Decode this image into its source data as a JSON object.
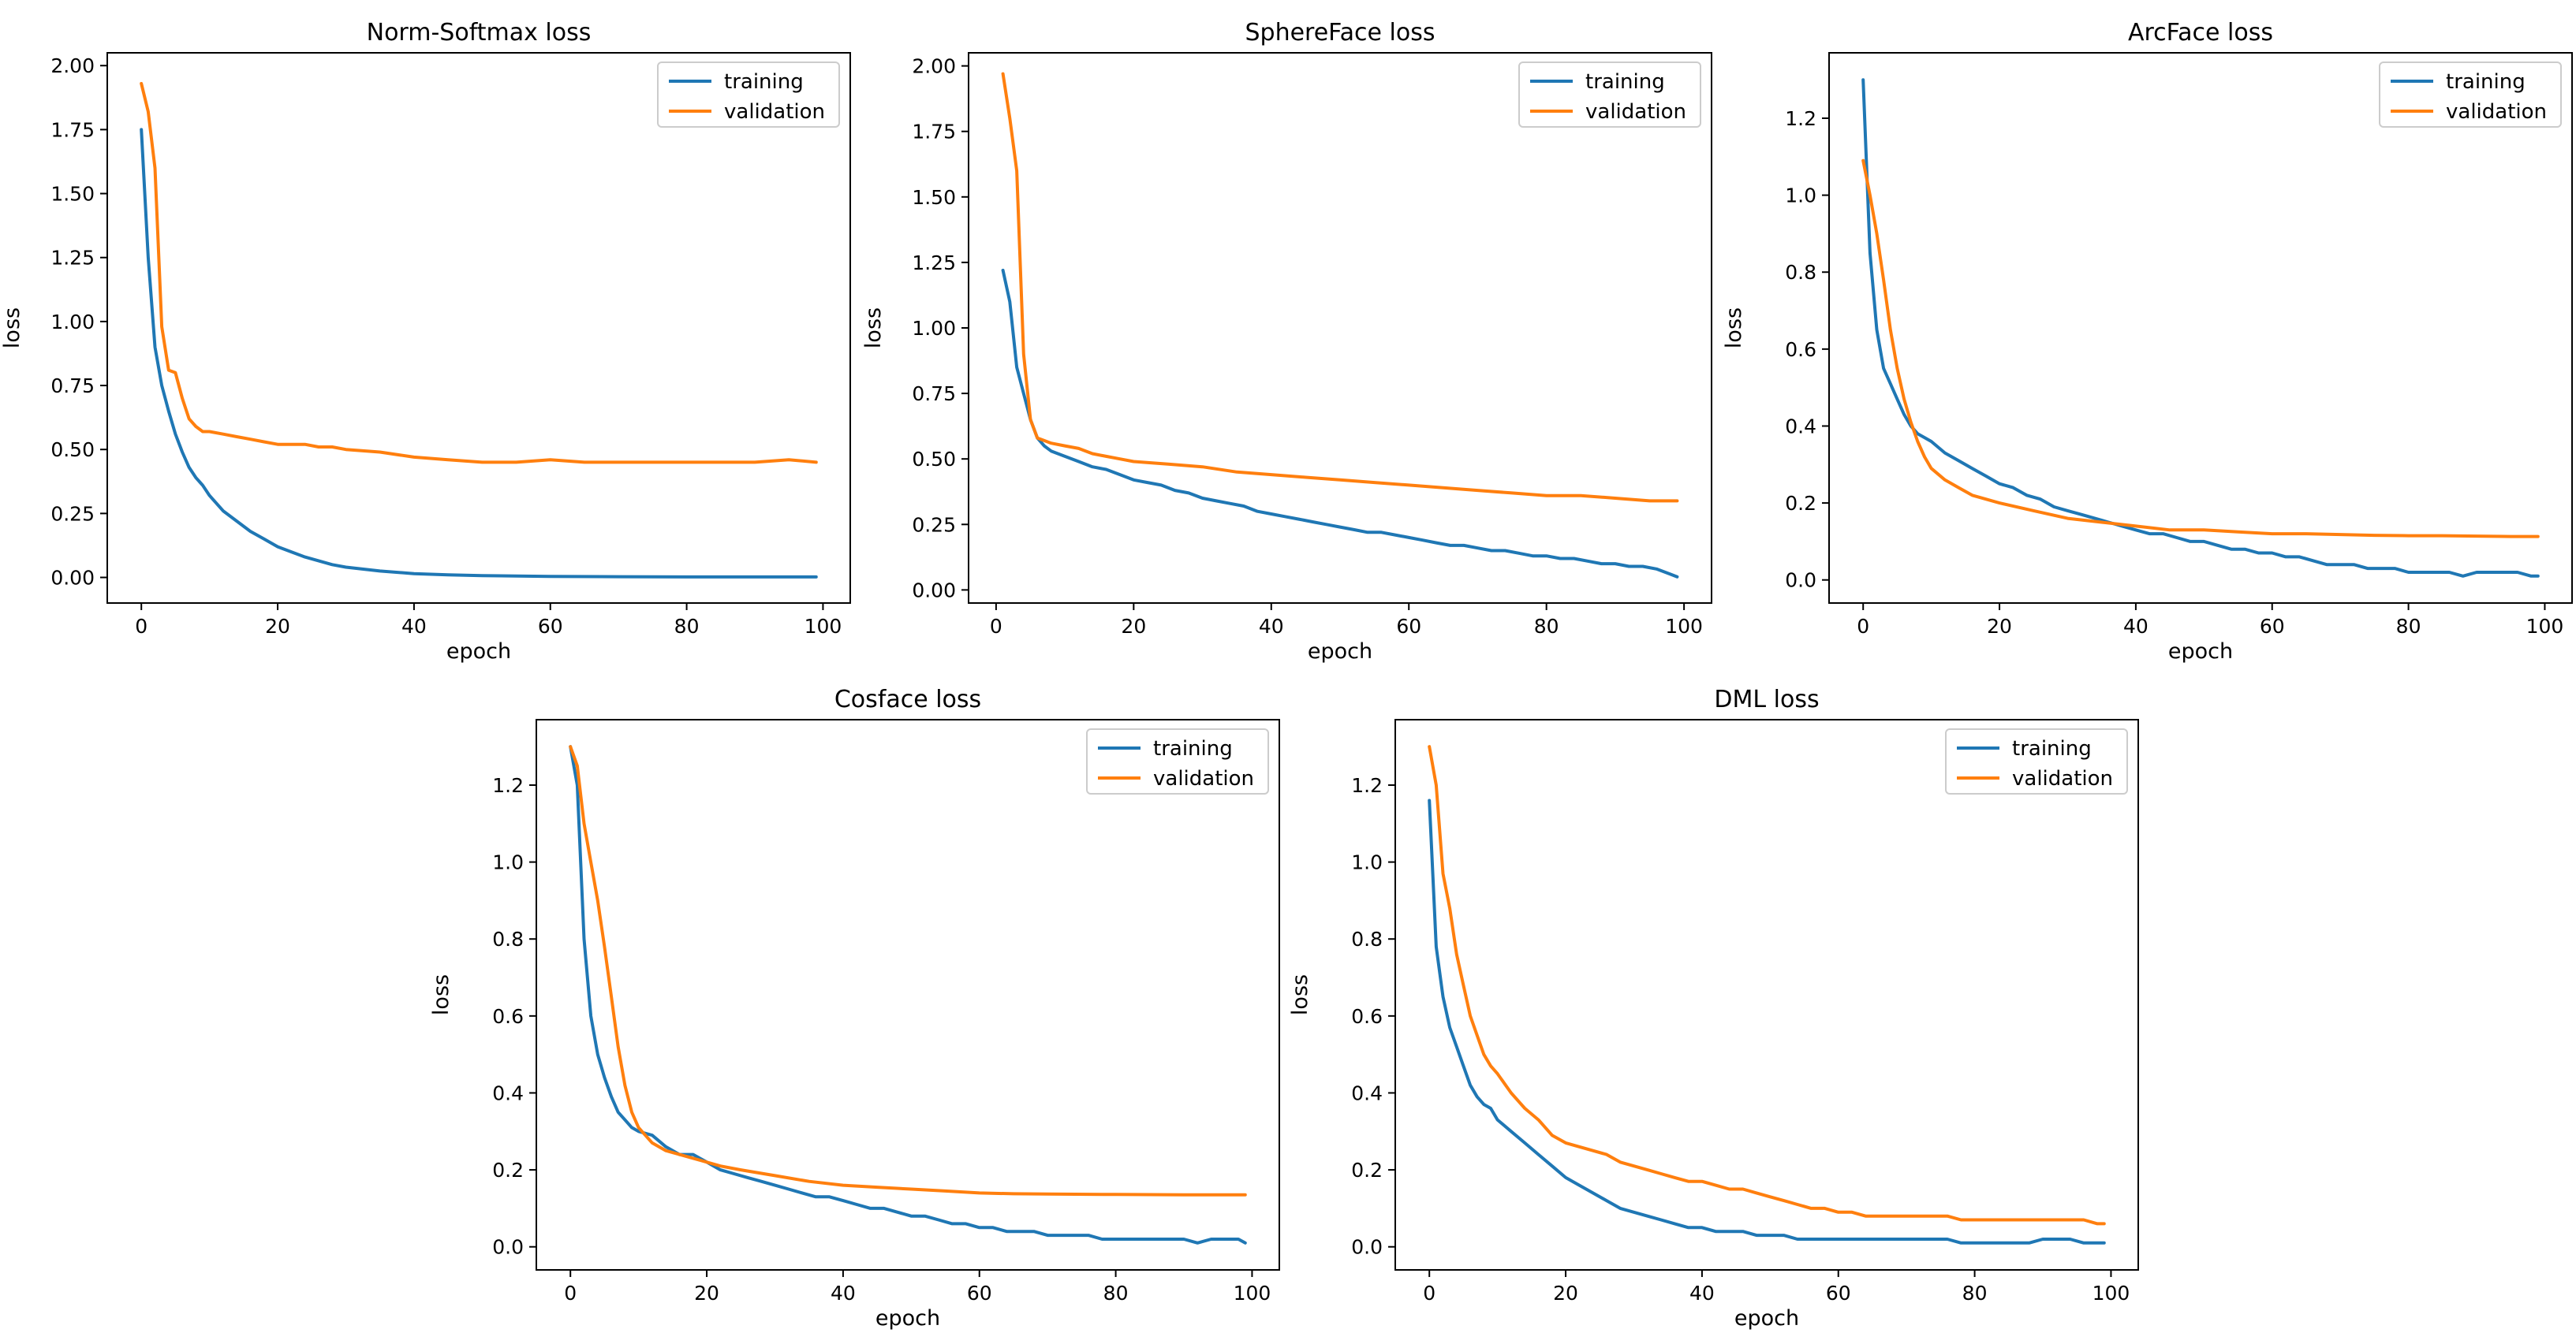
{
  "colors": {
    "training": "#1f77b4",
    "validation": "#ff7f0e"
  },
  "chart_data": [
    {
      "type": "line",
      "title": "Norm-Softmax loss",
      "xlabel": "epoch",
      "ylabel": "loss",
      "xlim": [
        -5,
        104
      ],
      "ylim": [
        -0.1,
        2.05
      ],
      "xticks": [
        0,
        20,
        40,
        60,
        80,
        100
      ],
      "xtick_labels": [
        "0",
        "20",
        "40",
        "60",
        "80",
        "100"
      ],
      "yticks": [
        0.0,
        0.25,
        0.5,
        0.75,
        1.0,
        1.25,
        1.5,
        1.75,
        2.0
      ],
      "ytick_labels": [
        "0.00",
        "0.25",
        "0.50",
        "0.75",
        "1.00",
        "1.25",
        "1.50",
        "1.75",
        "2.00"
      ],
      "legend_position": "top-right",
      "series": [
        {
          "name": "training",
          "x": [
            0,
            1,
            2,
            3,
            4,
            5,
            6,
            7,
            8,
            9,
            10,
            12,
            14,
            16,
            18,
            20,
            22,
            24,
            26,
            28,
            30,
            35,
            40,
            45,
            50,
            60,
            70,
            80,
            90,
            99
          ],
          "y": [
            1.75,
            1.25,
            0.9,
            0.75,
            0.65,
            0.56,
            0.49,
            0.43,
            0.39,
            0.36,
            0.32,
            0.26,
            0.22,
            0.18,
            0.15,
            0.12,
            0.1,
            0.08,
            0.065,
            0.05,
            0.04,
            0.025,
            0.015,
            0.01,
            0.007,
            0.004,
            0.003,
            0.002,
            0.002,
            0.002
          ]
        },
        {
          "name": "validation",
          "x": [
            0,
            1,
            2,
            3,
            4,
            5,
            6,
            7,
            8,
            9,
            10,
            12,
            14,
            16,
            18,
            20,
            22,
            24,
            26,
            28,
            30,
            35,
            40,
            45,
            50,
            55,
            60,
            65,
            70,
            80,
            90,
            95,
            99
          ],
          "y": [
            1.93,
            1.82,
            1.6,
            0.98,
            0.81,
            0.8,
            0.7,
            0.62,
            0.59,
            0.57,
            0.57,
            0.56,
            0.55,
            0.54,
            0.53,
            0.52,
            0.52,
            0.52,
            0.51,
            0.51,
            0.5,
            0.49,
            0.47,
            0.46,
            0.45,
            0.45,
            0.46,
            0.45,
            0.45,
            0.45,
            0.45,
            0.46,
            0.45
          ]
        }
      ]
    },
    {
      "type": "line",
      "title": "SphereFace loss",
      "xlabel": "epoch",
      "ylabel": "loss",
      "xlim": [
        -4,
        104
      ],
      "ylim": [
        -0.05,
        2.05
      ],
      "xticks": [
        0,
        20,
        40,
        60,
        80,
        100
      ],
      "xtick_labels": [
        "0",
        "20",
        "40",
        "60",
        "80",
        "100"
      ],
      "yticks": [
        0.0,
        0.25,
        0.5,
        0.75,
        1.0,
        1.25,
        1.5,
        1.75,
        2.0
      ],
      "ytick_labels": [
        "0.00",
        "0.25",
        "0.50",
        "0.75",
        "1.00",
        "1.25",
        "1.50",
        "1.75",
        "2.00"
      ],
      "legend_position": "top-right",
      "series": [
        {
          "name": "training",
          "x": [
            1,
            2,
            3,
            4,
            5,
            6,
            7,
            8,
            10,
            12,
            14,
            16,
            18,
            20,
            22,
            24,
            26,
            28,
            30,
            32,
            34,
            36,
            38,
            40,
            42,
            44,
            46,
            48,
            50,
            52,
            54,
            56,
            58,
            60,
            62,
            64,
            66,
            68,
            70,
            72,
            74,
            76,
            78,
            80,
            82,
            84,
            86,
            88,
            90,
            92,
            94,
            96,
            98,
            99
          ],
          "y": [
            1.22,
            1.1,
            0.85,
            0.75,
            0.65,
            0.58,
            0.55,
            0.53,
            0.51,
            0.49,
            0.47,
            0.46,
            0.44,
            0.42,
            0.41,
            0.4,
            0.38,
            0.37,
            0.35,
            0.34,
            0.33,
            0.32,
            0.3,
            0.29,
            0.28,
            0.27,
            0.26,
            0.25,
            0.24,
            0.23,
            0.22,
            0.22,
            0.21,
            0.2,
            0.19,
            0.18,
            0.17,
            0.17,
            0.16,
            0.15,
            0.15,
            0.14,
            0.13,
            0.13,
            0.12,
            0.12,
            0.11,
            0.1,
            0.1,
            0.09,
            0.09,
            0.08,
            0.06,
            0.05
          ]
        },
        {
          "name": "validation",
          "x": [
            1,
            2,
            3,
            4,
            5,
            6,
            7,
            8,
            10,
            12,
            14,
            16,
            18,
            20,
            25,
            30,
            35,
            40,
            45,
            50,
            55,
            60,
            65,
            70,
            75,
            80,
            85,
            90,
            95,
            99
          ],
          "y": [
            1.97,
            1.8,
            1.6,
            0.9,
            0.65,
            0.58,
            0.57,
            0.56,
            0.55,
            0.54,
            0.52,
            0.51,
            0.5,
            0.49,
            0.48,
            0.47,
            0.45,
            0.44,
            0.43,
            0.42,
            0.41,
            0.4,
            0.39,
            0.38,
            0.37,
            0.36,
            0.36,
            0.35,
            0.34,
            0.34
          ]
        }
      ]
    },
    {
      "type": "line",
      "title": "ArcFace loss",
      "xlabel": "epoch",
      "ylabel": "loss",
      "xlim": [
        -5,
        104
      ],
      "ylim": [
        -0.06,
        1.37
      ],
      "xticks": [
        0,
        20,
        40,
        60,
        80,
        100
      ],
      "xtick_labels": [
        "0",
        "20",
        "40",
        "60",
        "80",
        "100"
      ],
      "yticks": [
        0.0,
        0.2,
        0.4,
        0.6,
        0.8,
        1.0,
        1.2
      ],
      "ytick_labels": [
        "0.0",
        "0.2",
        "0.4",
        "0.6",
        "0.8",
        "1.0",
        "1.2"
      ],
      "legend_position": "top-right",
      "series": [
        {
          "name": "training",
          "x": [
            0,
            1,
            2,
            3,
            4,
            5,
            6,
            7,
            8,
            9,
            10,
            12,
            14,
            16,
            18,
            20,
            22,
            24,
            26,
            28,
            30,
            32,
            34,
            36,
            38,
            40,
            42,
            44,
            46,
            48,
            50,
            52,
            54,
            56,
            58,
            60,
            62,
            64,
            66,
            68,
            70,
            72,
            74,
            76,
            78,
            80,
            82,
            84,
            86,
            88,
            90,
            92,
            94,
            96,
            98,
            99
          ],
          "y": [
            1.3,
            0.85,
            0.65,
            0.55,
            0.51,
            0.47,
            0.43,
            0.4,
            0.38,
            0.37,
            0.36,
            0.33,
            0.31,
            0.29,
            0.27,
            0.25,
            0.24,
            0.22,
            0.21,
            0.19,
            0.18,
            0.17,
            0.16,
            0.15,
            0.14,
            0.13,
            0.12,
            0.12,
            0.11,
            0.1,
            0.1,
            0.09,
            0.08,
            0.08,
            0.07,
            0.07,
            0.06,
            0.06,
            0.05,
            0.04,
            0.04,
            0.04,
            0.03,
            0.03,
            0.03,
            0.02,
            0.02,
            0.02,
            0.02,
            0.01,
            0.02,
            0.02,
            0.02,
            0.02,
            0.01,
            0.01
          ]
        },
        {
          "name": "validation",
          "x": [
            0,
            1,
            2,
            3,
            4,
            5,
            6,
            7,
            8,
            9,
            10,
            12,
            14,
            16,
            18,
            20,
            25,
            30,
            35,
            40,
            45,
            50,
            55,
            60,
            65,
            70,
            75,
            80,
            85,
            90,
            95,
            99
          ],
          "y": [
            1.09,
            1.0,
            0.9,
            0.78,
            0.65,
            0.55,
            0.47,
            0.41,
            0.36,
            0.32,
            0.29,
            0.26,
            0.24,
            0.22,
            0.21,
            0.2,
            0.18,
            0.16,
            0.15,
            0.14,
            0.13,
            0.13,
            0.125,
            0.12,
            0.12,
            0.118,
            0.116,
            0.115,
            0.115,
            0.114,
            0.113,
            0.113
          ]
        }
      ]
    },
    {
      "type": "line",
      "title": "Cosface loss",
      "xlabel": "epoch",
      "ylabel": "loss",
      "xlim": [
        -5,
        104
      ],
      "ylim": [
        -0.06,
        1.37
      ],
      "xticks": [
        0,
        20,
        40,
        60,
        80,
        100
      ],
      "xtick_labels": [
        "0",
        "20",
        "40",
        "60",
        "80",
        "100"
      ],
      "yticks": [
        0.0,
        0.2,
        0.4,
        0.6,
        0.8,
        1.0,
        1.2
      ],
      "ytick_labels": [
        "0.0",
        "0.2",
        "0.4",
        "0.6",
        "0.8",
        "1.0",
        "1.2"
      ],
      "legend_position": "top-right",
      "series": [
        {
          "name": "training",
          "x": [
            0,
            1,
            2,
            3,
            4,
            5,
            6,
            7,
            8,
            9,
            10,
            12,
            14,
            16,
            18,
            20,
            22,
            24,
            26,
            28,
            30,
            32,
            34,
            36,
            38,
            40,
            42,
            44,
            46,
            48,
            50,
            52,
            54,
            56,
            58,
            60,
            62,
            64,
            66,
            68,
            70,
            72,
            74,
            76,
            78,
            80,
            82,
            84,
            86,
            88,
            90,
            92,
            94,
            96,
            98,
            99
          ],
          "y": [
            1.3,
            1.2,
            0.8,
            0.6,
            0.5,
            0.44,
            0.39,
            0.35,
            0.33,
            0.31,
            0.3,
            0.29,
            0.26,
            0.24,
            0.24,
            0.22,
            0.2,
            0.19,
            0.18,
            0.17,
            0.16,
            0.15,
            0.14,
            0.13,
            0.13,
            0.12,
            0.11,
            0.1,
            0.1,
            0.09,
            0.08,
            0.08,
            0.07,
            0.06,
            0.06,
            0.05,
            0.05,
            0.04,
            0.04,
            0.04,
            0.03,
            0.03,
            0.03,
            0.03,
            0.02,
            0.02,
            0.02,
            0.02,
            0.02,
            0.02,
            0.02,
            0.01,
            0.02,
            0.02,
            0.02,
            0.01
          ]
        },
        {
          "name": "validation",
          "x": [
            0,
            1,
            2,
            3,
            4,
            5,
            6,
            7,
            8,
            9,
            10,
            12,
            14,
            16,
            18,
            20,
            22,
            25,
            30,
            35,
            40,
            45,
            50,
            55,
            60,
            65,
            70,
            80,
            90,
            99
          ],
          "y": [
            1.3,
            1.25,
            1.1,
            1.0,
            0.9,
            0.78,
            0.65,
            0.52,
            0.42,
            0.35,
            0.31,
            0.27,
            0.25,
            0.24,
            0.23,
            0.22,
            0.21,
            0.2,
            0.185,
            0.17,
            0.16,
            0.155,
            0.15,
            0.145,
            0.14,
            0.138,
            0.137,
            0.136,
            0.135,
            0.135
          ]
        }
      ]
    },
    {
      "type": "line",
      "title": "DML loss",
      "xlabel": "epoch",
      "ylabel": "loss",
      "xlim": [
        -5,
        104
      ],
      "ylim": [
        -0.06,
        1.37
      ],
      "xticks": [
        0,
        20,
        40,
        60,
        80,
        100
      ],
      "xtick_labels": [
        "0",
        "20",
        "40",
        "60",
        "80",
        "100"
      ],
      "yticks": [
        0.0,
        0.2,
        0.4,
        0.6,
        0.8,
        1.0,
        1.2
      ],
      "ytick_labels": [
        "0.0",
        "0.2",
        "0.4",
        "0.6",
        "0.8",
        "1.0",
        "1.2"
      ],
      "legend_position": "top-right",
      "series": [
        {
          "name": "training",
          "x": [
            0,
            1,
            2,
            3,
            4,
            5,
            6,
            7,
            8,
            9,
            10,
            12,
            14,
            16,
            18,
            20,
            22,
            24,
            26,
            28,
            30,
            32,
            34,
            36,
            38,
            40,
            42,
            44,
            46,
            48,
            50,
            52,
            54,
            56,
            58,
            60,
            62,
            64,
            66,
            68,
            70,
            72,
            74,
            76,
            78,
            80,
            82,
            84,
            86,
            88,
            90,
            92,
            94,
            96,
            98,
            99
          ],
          "y": [
            1.16,
            0.78,
            0.65,
            0.57,
            0.52,
            0.47,
            0.42,
            0.39,
            0.37,
            0.36,
            0.33,
            0.3,
            0.27,
            0.24,
            0.21,
            0.18,
            0.16,
            0.14,
            0.12,
            0.1,
            0.09,
            0.08,
            0.07,
            0.06,
            0.05,
            0.05,
            0.04,
            0.04,
            0.04,
            0.03,
            0.03,
            0.03,
            0.02,
            0.02,
            0.02,
            0.02,
            0.02,
            0.02,
            0.02,
            0.02,
            0.02,
            0.02,
            0.02,
            0.02,
            0.01,
            0.01,
            0.01,
            0.01,
            0.01,
            0.01,
            0.02,
            0.02,
            0.02,
            0.01,
            0.01,
            0.01
          ]
        },
        {
          "name": "validation",
          "x": [
            0,
            1,
            2,
            3,
            4,
            5,
            6,
            7,
            8,
            9,
            10,
            12,
            14,
            16,
            18,
            20,
            22,
            24,
            26,
            28,
            30,
            32,
            34,
            36,
            38,
            40,
            42,
            44,
            46,
            48,
            50,
            52,
            54,
            56,
            58,
            60,
            62,
            64,
            66,
            68,
            70,
            72,
            74,
            76,
            78,
            80,
            82,
            84,
            86,
            88,
            90,
            92,
            94,
            96,
            98,
            99
          ],
          "y": [
            1.3,
            1.2,
            0.97,
            0.88,
            0.76,
            0.68,
            0.6,
            0.55,
            0.5,
            0.47,
            0.45,
            0.4,
            0.36,
            0.33,
            0.29,
            0.27,
            0.26,
            0.25,
            0.24,
            0.22,
            0.21,
            0.2,
            0.19,
            0.18,
            0.17,
            0.17,
            0.16,
            0.15,
            0.15,
            0.14,
            0.13,
            0.12,
            0.11,
            0.1,
            0.1,
            0.09,
            0.09,
            0.08,
            0.08,
            0.08,
            0.08,
            0.08,
            0.08,
            0.08,
            0.07,
            0.07,
            0.07,
            0.07,
            0.07,
            0.07,
            0.07,
            0.07,
            0.07,
            0.07,
            0.06,
            0.06
          ]
        }
      ]
    }
  ]
}
